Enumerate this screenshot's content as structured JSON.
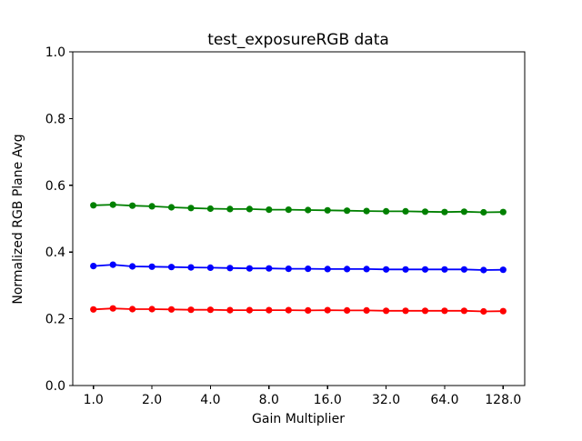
{
  "chart_data": {
    "type": "line",
    "title": "test_exposureRGB data",
    "xlabel": "Gain Multiplier",
    "ylabel": "Normalized RGB Plane Avg",
    "xscale": "log2",
    "xlim": [
      1.0,
      128.0
    ],
    "ylim": [
      0.0,
      1.0
    ],
    "grid": false,
    "legend": "none",
    "background_color": "#ffffff",
    "axes_color": "#000000",
    "x_tick_labels": [
      "1.0",
      "2.0",
      "4.0",
      "8.0",
      "16.0",
      "32.0",
      "64.0",
      "128.0"
    ],
    "y_tick_labels": [
      "0.0",
      "0.2",
      "0.4",
      "0.6",
      "0.8",
      "1.0"
    ],
    "x": [
      1.0,
      1.26,
      1.587,
      2.0,
      2.52,
      3.175,
      4.0,
      5.04,
      6.35,
      8.0,
      10.079,
      12.699,
      16.0,
      20.159,
      25.398,
      32.0,
      40.317,
      50.797,
      64.0,
      80.635,
      101.594,
      128.0
    ],
    "series": [
      {
        "name": "green",
        "color": "#008000",
        "marker": "circle",
        "values": [
          0.54,
          0.542,
          0.539,
          0.537,
          0.534,
          0.532,
          0.53,
          0.529,
          0.529,
          0.527,
          0.527,
          0.526,
          0.525,
          0.524,
          0.523,
          0.522,
          0.522,
          0.521,
          0.52,
          0.521,
          0.519,
          0.52
        ]
      },
      {
        "name": "blue",
        "color": "#0000ff",
        "marker": "circle",
        "values": [
          0.358,
          0.362,
          0.357,
          0.356,
          0.355,
          0.354,
          0.353,
          0.352,
          0.351,
          0.351,
          0.35,
          0.35,
          0.349,
          0.349,
          0.349,
          0.348,
          0.348,
          0.348,
          0.348,
          0.348,
          0.346,
          0.347
        ]
      },
      {
        "name": "red",
        "color": "#ff0000",
        "marker": "circle",
        "values": [
          0.228,
          0.231,
          0.229,
          0.229,
          0.228,
          0.227,
          0.227,
          0.226,
          0.226,
          0.226,
          0.226,
          0.225,
          0.226,
          0.225,
          0.225,
          0.224,
          0.224,
          0.224,
          0.224,
          0.224,
          0.222,
          0.223
        ]
      }
    ]
  }
}
